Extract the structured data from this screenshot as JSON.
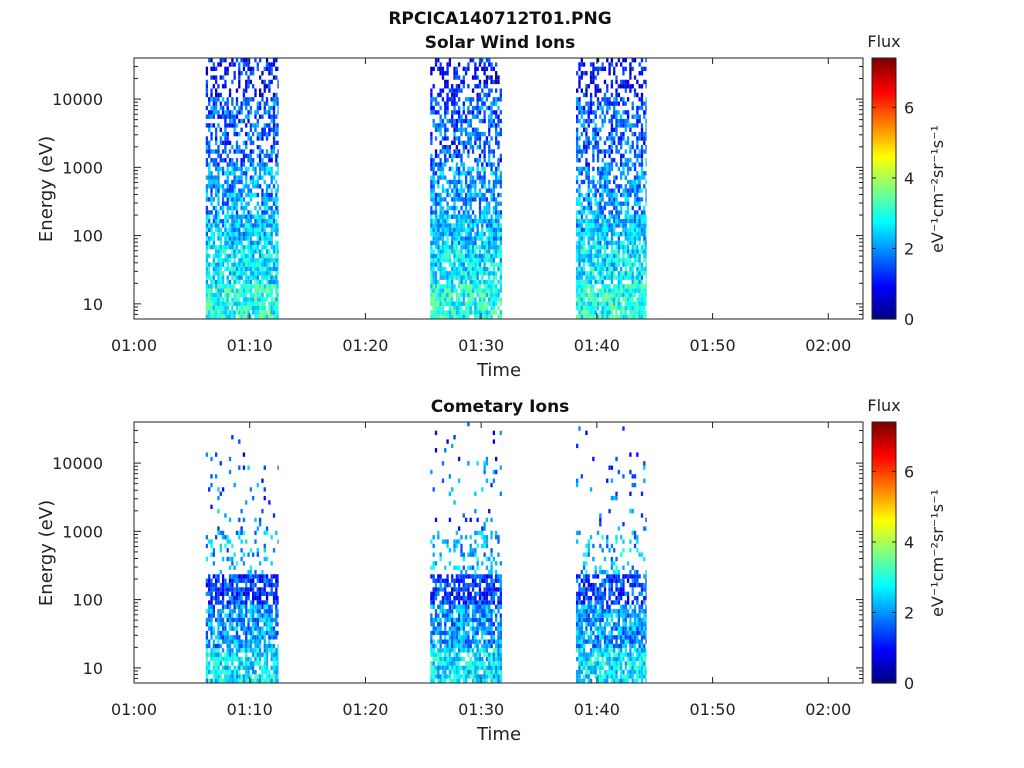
{
  "figure": {
    "title": "RPCICA140712T01.PNG"
  },
  "chart_data": [
    {
      "type": "heatmap",
      "title": "Solar Wind Ions",
      "xlabel": "Time",
      "ylabel": "Energy (eV)",
      "x_ticks": [
        "01:00",
        "01:10",
        "01:20",
        "01:30",
        "01:40",
        "01:50",
        "02:00"
      ],
      "xlim_minutes": [
        0,
        63
      ],
      "y_ticks": [
        10,
        100,
        1000,
        10000
      ],
      "y_tick_labels": [
        "10",
        "100",
        "1000",
        "10000"
      ],
      "ylim": [
        6,
        40000
      ],
      "yscale": "log",
      "colorbar": {
        "title": "Flux",
        "label": "eV⁻¹cm⁻²sr⁻¹s⁻¹",
        "ticks": [
          0,
          2,
          4,
          6
        ],
        "range": [
          0,
          7.4
        ],
        "colormap": "jet"
      },
      "bursts_minutes": [
        [
          6.2,
          12.5
        ],
        [
          25.6,
          31.8
        ],
        [
          38.2,
          44.3
        ]
      ],
      "profile": "solar-wind"
    },
    {
      "type": "heatmap",
      "title": "Cometary Ions",
      "xlabel": "Time",
      "ylabel": "Energy (eV)",
      "x_ticks": [
        "01:00",
        "01:10",
        "01:20",
        "01:30",
        "01:40",
        "01:50",
        "02:00"
      ],
      "xlim_minutes": [
        0,
        63
      ],
      "y_ticks": [
        10,
        100,
        1000,
        10000
      ],
      "y_tick_labels": [
        "10",
        "100",
        "1000",
        "10000"
      ],
      "ylim": [
        6,
        40000
      ],
      "yscale": "log",
      "colorbar": {
        "title": "Flux",
        "label": "eV⁻¹cm⁻²sr⁻¹s⁻¹",
        "ticks": [
          0,
          2,
          4,
          6
        ],
        "range": [
          0,
          7.4
        ],
        "colormap": "jet"
      },
      "bursts_minutes": [
        [
          6.2,
          12.5
        ],
        [
          25.6,
          31.8
        ],
        [
          38.2,
          44.3
        ]
      ],
      "profile": "cometary"
    }
  ]
}
